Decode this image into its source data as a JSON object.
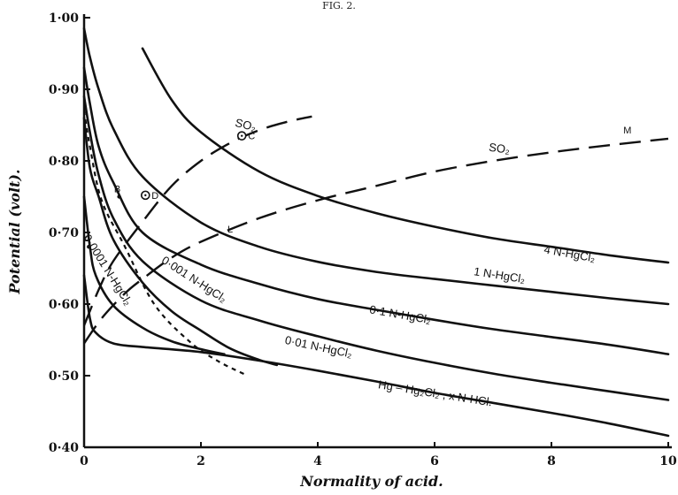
{
  "figure": {
    "title": "FIG. 2."
  },
  "chart_data": {
    "type": "line",
    "xlabel": "Normality of acid.",
    "ylabel": "Potential (volt).",
    "xlim": [
      0,
      10
    ],
    "ylim": [
      0.4,
      1.0
    ],
    "x_ticks": [
      {
        "v": 0,
        "label": "0"
      },
      {
        "v": 2,
        "label": "2"
      },
      {
        "v": 4,
        "label": "4"
      },
      {
        "v": 6,
        "label": "6"
      },
      {
        "v": 8,
        "label": "8"
      },
      {
        "v": 10,
        "label": "10"
      }
    ],
    "y_ticks": [
      {
        "v": 0.4,
        "label": "0·40"
      },
      {
        "v": 0.5,
        "label": "0·50"
      },
      {
        "v": 0.6,
        "label": "0·60"
      },
      {
        "v": 0.7,
        "label": "0·70"
      },
      {
        "v": 0.8,
        "label": "0·80"
      },
      {
        "v": 0.9,
        "label": "0·90"
      },
      {
        "v": 1.0,
        "label": "1·00"
      }
    ],
    "grid": false,
    "series": [
      {
        "name": "4 N-HgCl2",
        "style": "solid",
        "points": [
          [
            1.0,
            0.957
          ],
          [
            1.5,
            0.885
          ],
          [
            2,
            0.84
          ],
          [
            3,
            0.785
          ],
          [
            4,
            0.751
          ],
          [
            5,
            0.727
          ],
          [
            6,
            0.708
          ],
          [
            7,
            0.692
          ],
          [
            8,
            0.68
          ],
          [
            9,
            0.668
          ],
          [
            10,
            0.658
          ]
        ],
        "label": "4 N-HgCl₂",
        "label_at": [
          8.3,
          0.665
        ],
        "label_angle": 10
      },
      {
        "name": "1 N-HgCl2",
        "style": "solid",
        "points": [
          [
            0.0,
            0.985
          ],
          [
            0.1,
            0.945
          ],
          [
            0.25,
            0.9
          ],
          [
            0.5,
            0.845
          ],
          [
            1,
            0.778
          ],
          [
            2,
            0.714
          ],
          [
            3,
            0.68
          ],
          [
            4,
            0.659
          ],
          [
            5,
            0.645
          ],
          [
            6,
            0.635
          ],
          [
            7,
            0.626
          ],
          [
            8,
            0.617
          ],
          [
            9,
            0.608
          ],
          [
            10,
            0.6
          ]
        ],
        "label": "1 N-HgCl₂",
        "label_at": [
          7.1,
          0.635
        ],
        "label_angle": 9
      },
      {
        "name": "0.1 N-HgCl2",
        "style": "solid",
        "points": [
          [
            0.0,
            0.93
          ],
          [
            0.1,
            0.88
          ],
          [
            0.25,
            0.82
          ],
          [
            0.5,
            0.77
          ],
          [
            1,
            0.7
          ],
          [
            2,
            0.655
          ],
          [
            3,
            0.628
          ],
          [
            4,
            0.607
          ],
          [
            5,
            0.592
          ],
          [
            6,
            0.578
          ],
          [
            7,
            0.565
          ],
          [
            8,
            0.554
          ],
          [
            9,
            0.543
          ],
          [
            10,
            0.53
          ]
        ],
        "label": "0·1 N-HgCl₂",
        "label_at": [
          5.4,
          0.58
        ],
        "label_angle": 10
      },
      {
        "name": "0.01 N-HgCl2",
        "style": "solid",
        "points": [
          [
            0.0,
            0.89
          ],
          [
            0.1,
            0.84
          ],
          [
            0.25,
            0.78
          ],
          [
            0.5,
            0.72
          ],
          [
            1,
            0.66
          ],
          [
            2,
            0.605
          ],
          [
            3,
            0.577
          ],
          [
            4,
            0.555
          ],
          [
            5,
            0.535
          ],
          [
            6,
            0.518
          ],
          [
            7,
            0.503
          ],
          [
            8,
            0.49
          ],
          [
            9,
            0.478
          ],
          [
            10,
            0.466
          ]
        ],
        "label": "0·01 N-HgCl₂",
        "label_at": [
          4.0,
          0.535
        ],
        "label_angle": 12
      },
      {
        "name": "0.001 N-HgCl2",
        "style": "solid",
        "points": [
          [
            0.0,
            0.86
          ],
          [
            0.1,
            0.79
          ],
          [
            0.25,
            0.75
          ],
          [
            0.5,
            0.69
          ],
          [
            1,
            0.63
          ],
          [
            1.5,
            0.59
          ],
          [
            2,
            0.563
          ],
          [
            2.5,
            0.538
          ],
          [
            3,
            0.522
          ],
          [
            3.3,
            0.515
          ]
        ],
        "label": "0·001 N-HgCl₂",
        "label_at": [
          1.85,
          0.63
        ],
        "label_angle": 33
      },
      {
        "name": "0.0001 N-HgCl2",
        "style": "solid",
        "points": [
          [
            0.0,
            0.75
          ],
          [
            0.1,
            0.68
          ],
          [
            0.2,
            0.64
          ],
          [
            0.5,
            0.598
          ],
          [
            1,
            0.567
          ],
          [
            1.5,
            0.548
          ],
          [
            2,
            0.537
          ],
          [
            2.4,
            0.53
          ]
        ],
        "label": "0·0001 N-HgCl₂",
        "label_at": [
          0.35,
          0.645
        ],
        "label_angle": 58
      },
      {
        "name": "Hg - Hg2Cl2, x N-HCl",
        "style": "solid",
        "points": [
          [
            0.0,
            0.64
          ],
          [
            0.1,
            0.58
          ],
          [
            0.2,
            0.56
          ],
          [
            0.5,
            0.545
          ],
          [
            1,
            0.54
          ],
          [
            2,
            0.533
          ],
          [
            3,
            0.521
          ],
          [
            4,
            0.507
          ],
          [
            5,
            0.492
          ],
          [
            6,
            0.476
          ],
          [
            7,
            0.462
          ],
          [
            8,
            0.448
          ],
          [
            9,
            0.433
          ],
          [
            10,
            0.416
          ]
        ],
        "label": "Hg – Hg₂Cl₂ , x N-HCl.",
        "label_at": [
          6.0,
          0.47
        ],
        "label_angle": 9
      },
      {
        "name": "SO2 (upper)",
        "style": "dashed",
        "points": [
          [
            0.0,
            0.57
          ],
          [
            0.25,
            0.62
          ],
          [
            0.5,
            0.66
          ],
          [
            1,
            0.715
          ],
          [
            1.5,
            0.765
          ],
          [
            2,
            0.8
          ],
          [
            2.5,
            0.825
          ],
          [
            3,
            0.843
          ],
          [
            3.5,
            0.855
          ],
          [
            3.9,
            0.862
          ]
        ],
        "label": "SO₂",
        "label_at": [
          2.75,
          0.845
        ],
        "label_angle": 14
      },
      {
        "name": "SO2 (lower)",
        "style": "dashed",
        "points": [
          [
            0.0,
            0.545
          ],
          [
            0.3,
            0.58
          ],
          [
            0.7,
            0.615
          ],
          [
            1,
            0.635
          ],
          [
            1.5,
            0.665
          ],
          [
            2,
            0.687
          ],
          [
            3,
            0.72
          ],
          [
            4,
            0.745
          ],
          [
            5,
            0.765
          ],
          [
            6,
            0.785
          ],
          [
            7,
            0.8
          ],
          [
            8,
            0.812
          ],
          [
            9,
            0.822
          ],
          [
            10,
            0.831
          ]
        ],
        "label": "SO₂",
        "label_at": [
          7.1,
          0.812
        ],
        "label_angle": 8
      },
      {
        "name": "B-line",
        "style": "dotted",
        "points": [
          [
            0.0,
            0.87
          ],
          [
            0.1,
            0.82
          ],
          [
            0.3,
            0.745
          ],
          [
            0.7,
            0.68
          ],
          [
            1.2,
            0.6
          ],
          [
            1.8,
            0.548
          ],
          [
            2.3,
            0.52
          ],
          [
            2.8,
            0.5
          ]
        ]
      }
    ],
    "annotations": [
      {
        "type": "circle",
        "label": "C",
        "x": 2.7,
        "y": 0.835
      },
      {
        "type": "circle",
        "label": "D",
        "x": 1.05,
        "y": 0.752
      },
      {
        "type": "point",
        "label": "B",
        "x": 0.6,
        "y": 0.75
      },
      {
        "type": "point",
        "label": "A",
        "x": 0.08,
        "y": 0.68
      },
      {
        "type": "text",
        "label": "L",
        "x": 2.5,
        "y": 0.7
      },
      {
        "type": "text",
        "label": "M",
        "x": 9.3,
        "y": 0.838
      }
    ]
  }
}
